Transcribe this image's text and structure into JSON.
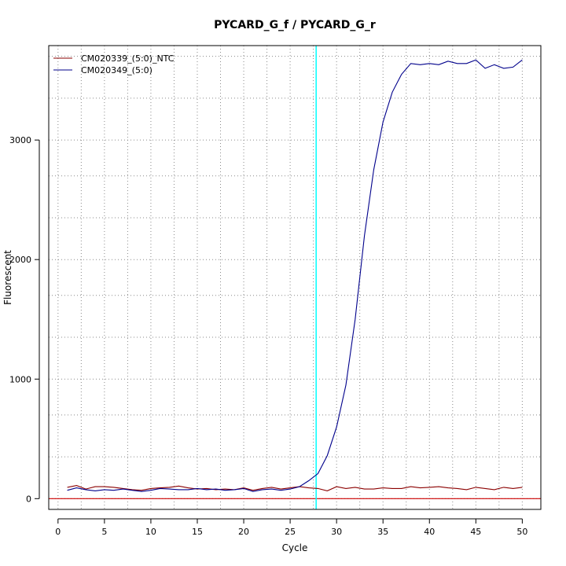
{
  "chart_data": {
    "type": "line",
    "title": "PYCARD_G_f / PYCARD_G_r",
    "xlabel": "Cycle",
    "ylabel": "Fluorescent",
    "xlim": [
      -1,
      52
    ],
    "ylim": [
      -90,
      3790
    ],
    "x_ticks": [
      0,
      5,
      10,
      15,
      20,
      25,
      30,
      35,
      40,
      45,
      50
    ],
    "x_tick_labels": [
      "0",
      "5",
      "10",
      "15",
      "20",
      "25",
      "30",
      "35",
      "40",
      "45",
      "50"
    ],
    "y_ticks": [
      0,
      1000,
      2000,
      3000
    ],
    "y_tick_labels": [
      "0",
      "1000",
      "2000",
      "3000"
    ],
    "x_grid": [
      0,
      2.5,
      5,
      7.5,
      10,
      12.5,
      15,
      17.5,
      20,
      22.5,
      25,
      27.5,
      30,
      32.5,
      35,
      37.5,
      40,
      42.5,
      45,
      47.5,
      50
    ],
    "y_grid": [
      0,
      350,
      700,
      1000,
      1350,
      1700,
      2000,
      2350,
      2700,
      3000,
      3350,
      3700
    ],
    "grid": true,
    "legend_position": "top-left",
    "threshold": {
      "value": 0,
      "color": "#cc0000"
    },
    "threshold_cycle": {
      "value": 27.8,
      "color": "#00ffff"
    },
    "series": [
      {
        "name": "CM020339_(5:0)_NTC",
        "color": "#8b0000",
        "x": [
          1,
          2,
          3,
          4,
          5,
          6,
          7,
          8,
          9,
          10,
          11,
          12,
          13,
          14,
          15,
          16,
          17,
          18,
          19,
          20,
          21,
          22,
          23,
          24,
          25,
          26,
          27,
          28,
          29,
          30,
          31,
          32,
          33,
          34,
          35,
          36,
          37,
          38,
          39,
          40,
          41,
          42,
          43,
          44,
          45,
          46,
          47,
          48,
          49,
          50
        ],
        "y": [
          95,
          110,
          80,
          100,
          100,
          95,
          85,
          75,
          70,
          85,
          90,
          95,
          105,
          90,
          80,
          85,
          75,
          80,
          75,
          90,
          70,
          85,
          95,
          80,
          90,
          100,
          90,
          85,
          65,
          100,
          85,
          95,
          80,
          80,
          90,
          85,
          85,
          100,
          90,
          95,
          100,
          90,
          85,
          75,
          95,
          85,
          75,
          95,
          85,
          95
        ]
      },
      {
        "name": "CM020349_(5:0)",
        "color": "#00008b",
        "x": [
          1,
          2,
          3,
          4,
          5,
          6,
          7,
          8,
          9,
          10,
          11,
          12,
          13,
          14,
          15,
          16,
          17,
          18,
          19,
          20,
          21,
          22,
          23,
          24,
          25,
          26,
          27,
          28,
          29,
          30,
          31,
          32,
          33,
          34,
          35,
          36,
          37,
          38,
          39,
          40,
          41,
          42,
          43,
          44,
          45,
          46,
          47,
          48,
          49,
          50
        ],
        "y": [
          70,
          90,
          75,
          65,
          75,
          70,
          80,
          70,
          60,
          70,
          85,
          80,
          75,
          75,
          85,
          75,
          80,
          70,
          75,
          85,
          60,
          75,
          80,
          70,
          80,
          100,
          150,
          210,
          360,
          600,
          950,
          1500,
          2200,
          2750,
          3150,
          3400,
          3550,
          3640,
          3630,
          3640,
          3630,
          3660,
          3640,
          3640,
          3670,
          3600,
          3630,
          3600,
          3610,
          3670
        ]
      }
    ]
  }
}
